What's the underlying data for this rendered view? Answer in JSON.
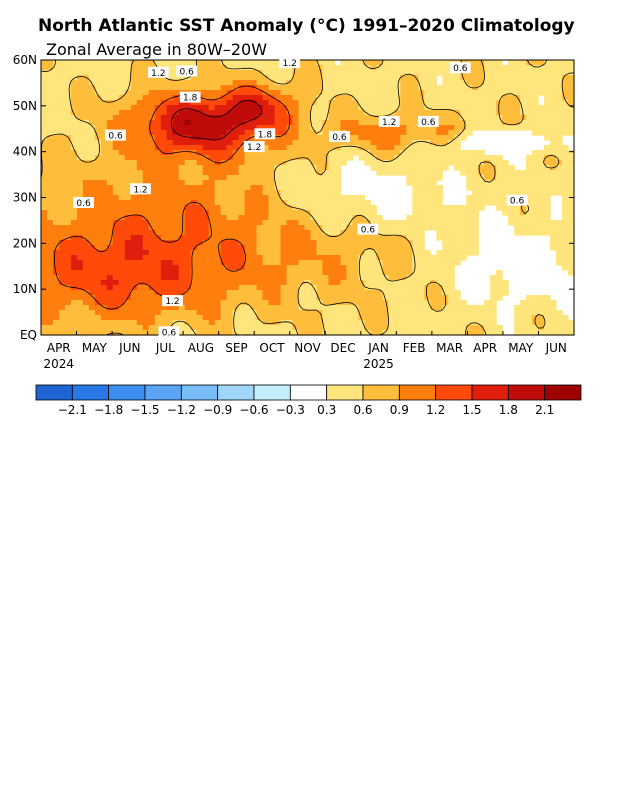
{
  "chart_data": {
    "type": "heatmap",
    "title": "North Atlantic SST Anomaly (°C) 1991–2020 Climatology",
    "subtitle": "Zonal Average in 80W–20W",
    "y_ticks": [
      "60N",
      "50N",
      "40N",
      "30N",
      "20N",
      "10N",
      "EQ"
    ],
    "y_values": [
      60,
      50,
      40,
      30,
      20,
      10,
      0
    ],
    "ylim": [
      0,
      60
    ],
    "x_ticks": [
      "APR",
      "MAY",
      "JUN",
      "JUL",
      "AUG",
      "SEP",
      "OCT",
      "NOV",
      "DEC",
      "JAN",
      "FEB",
      "MAR",
      "APR",
      "MAY",
      "JUN"
    ],
    "x_years": [
      {
        "label": "2024",
        "tick_index": 0
      },
      {
        "label": "2025",
        "tick_index": 9
      }
    ],
    "xlim_months": [
      0,
      15
    ],
    "colorbar": {
      "levels": [
        "-2.1",
        "-1.8",
        "-1.5",
        "-1.2",
        "-0.9",
        "-0.6",
        "-0.3",
        "0.3",
        "0.6",
        "0.9",
        "1.2",
        "1.5",
        "1.8",
        "2.1"
      ],
      "colors": [
        "#1e64d2",
        "#2878e6",
        "#3c8ff0",
        "#5aa5f5",
        "#78bdf8",
        "#a0d6fa",
        "#c3f0fa",
        "#ffffff",
        "#ffe57c",
        "#ffbd3c",
        "#ff7f0e",
        "#ff4a0a",
        "#e01e0e",
        "#c00b0b",
        "#9e0000"
      ]
    },
    "contour_labels": [
      {
        "text": "0.6",
        "month": 4.1,
        "lat": 57.5
      },
      {
        "text": "1.2",
        "month": 3.3,
        "lat": 57.2
      },
      {
        "text": "1.2",
        "month": 7.0,
        "lat": 59.3
      },
      {
        "text": "1.8",
        "month": 4.2,
        "lat": 51.8
      },
      {
        "text": "0.6",
        "month": 2.1,
        "lat": 43.5
      },
      {
        "text": "1.8",
        "month": 6.3,
        "lat": 43.8
      },
      {
        "text": "1.2",
        "month": 6.0,
        "lat": 41.0
      },
      {
        "text": "0.6",
        "month": 8.4,
        "lat": 43.2
      },
      {
        "text": "1.2",
        "month": 9.8,
        "lat": 46.5
      },
      {
        "text": "0.6",
        "month": 10.9,
        "lat": 46.5
      },
      {
        "text": "0.6",
        "month": 11.8,
        "lat": 58.2
      },
      {
        "text": "1.2",
        "month": 2.8,
        "lat": 31.8
      },
      {
        "text": "0.6",
        "month": 1.2,
        "lat": 28.8
      },
      {
        "text": "0.6",
        "month": 13.4,
        "lat": 29.3
      },
      {
        "text": "0.6",
        "month": 9.2,
        "lat": 23.0
      },
      {
        "text": "1.2",
        "month": 3.7,
        "lat": 7.4
      },
      {
        "text": "0.6",
        "month": 3.6,
        "lat": 0.6
      }
    ],
    "grid": false,
    "legend": "bottom"
  }
}
